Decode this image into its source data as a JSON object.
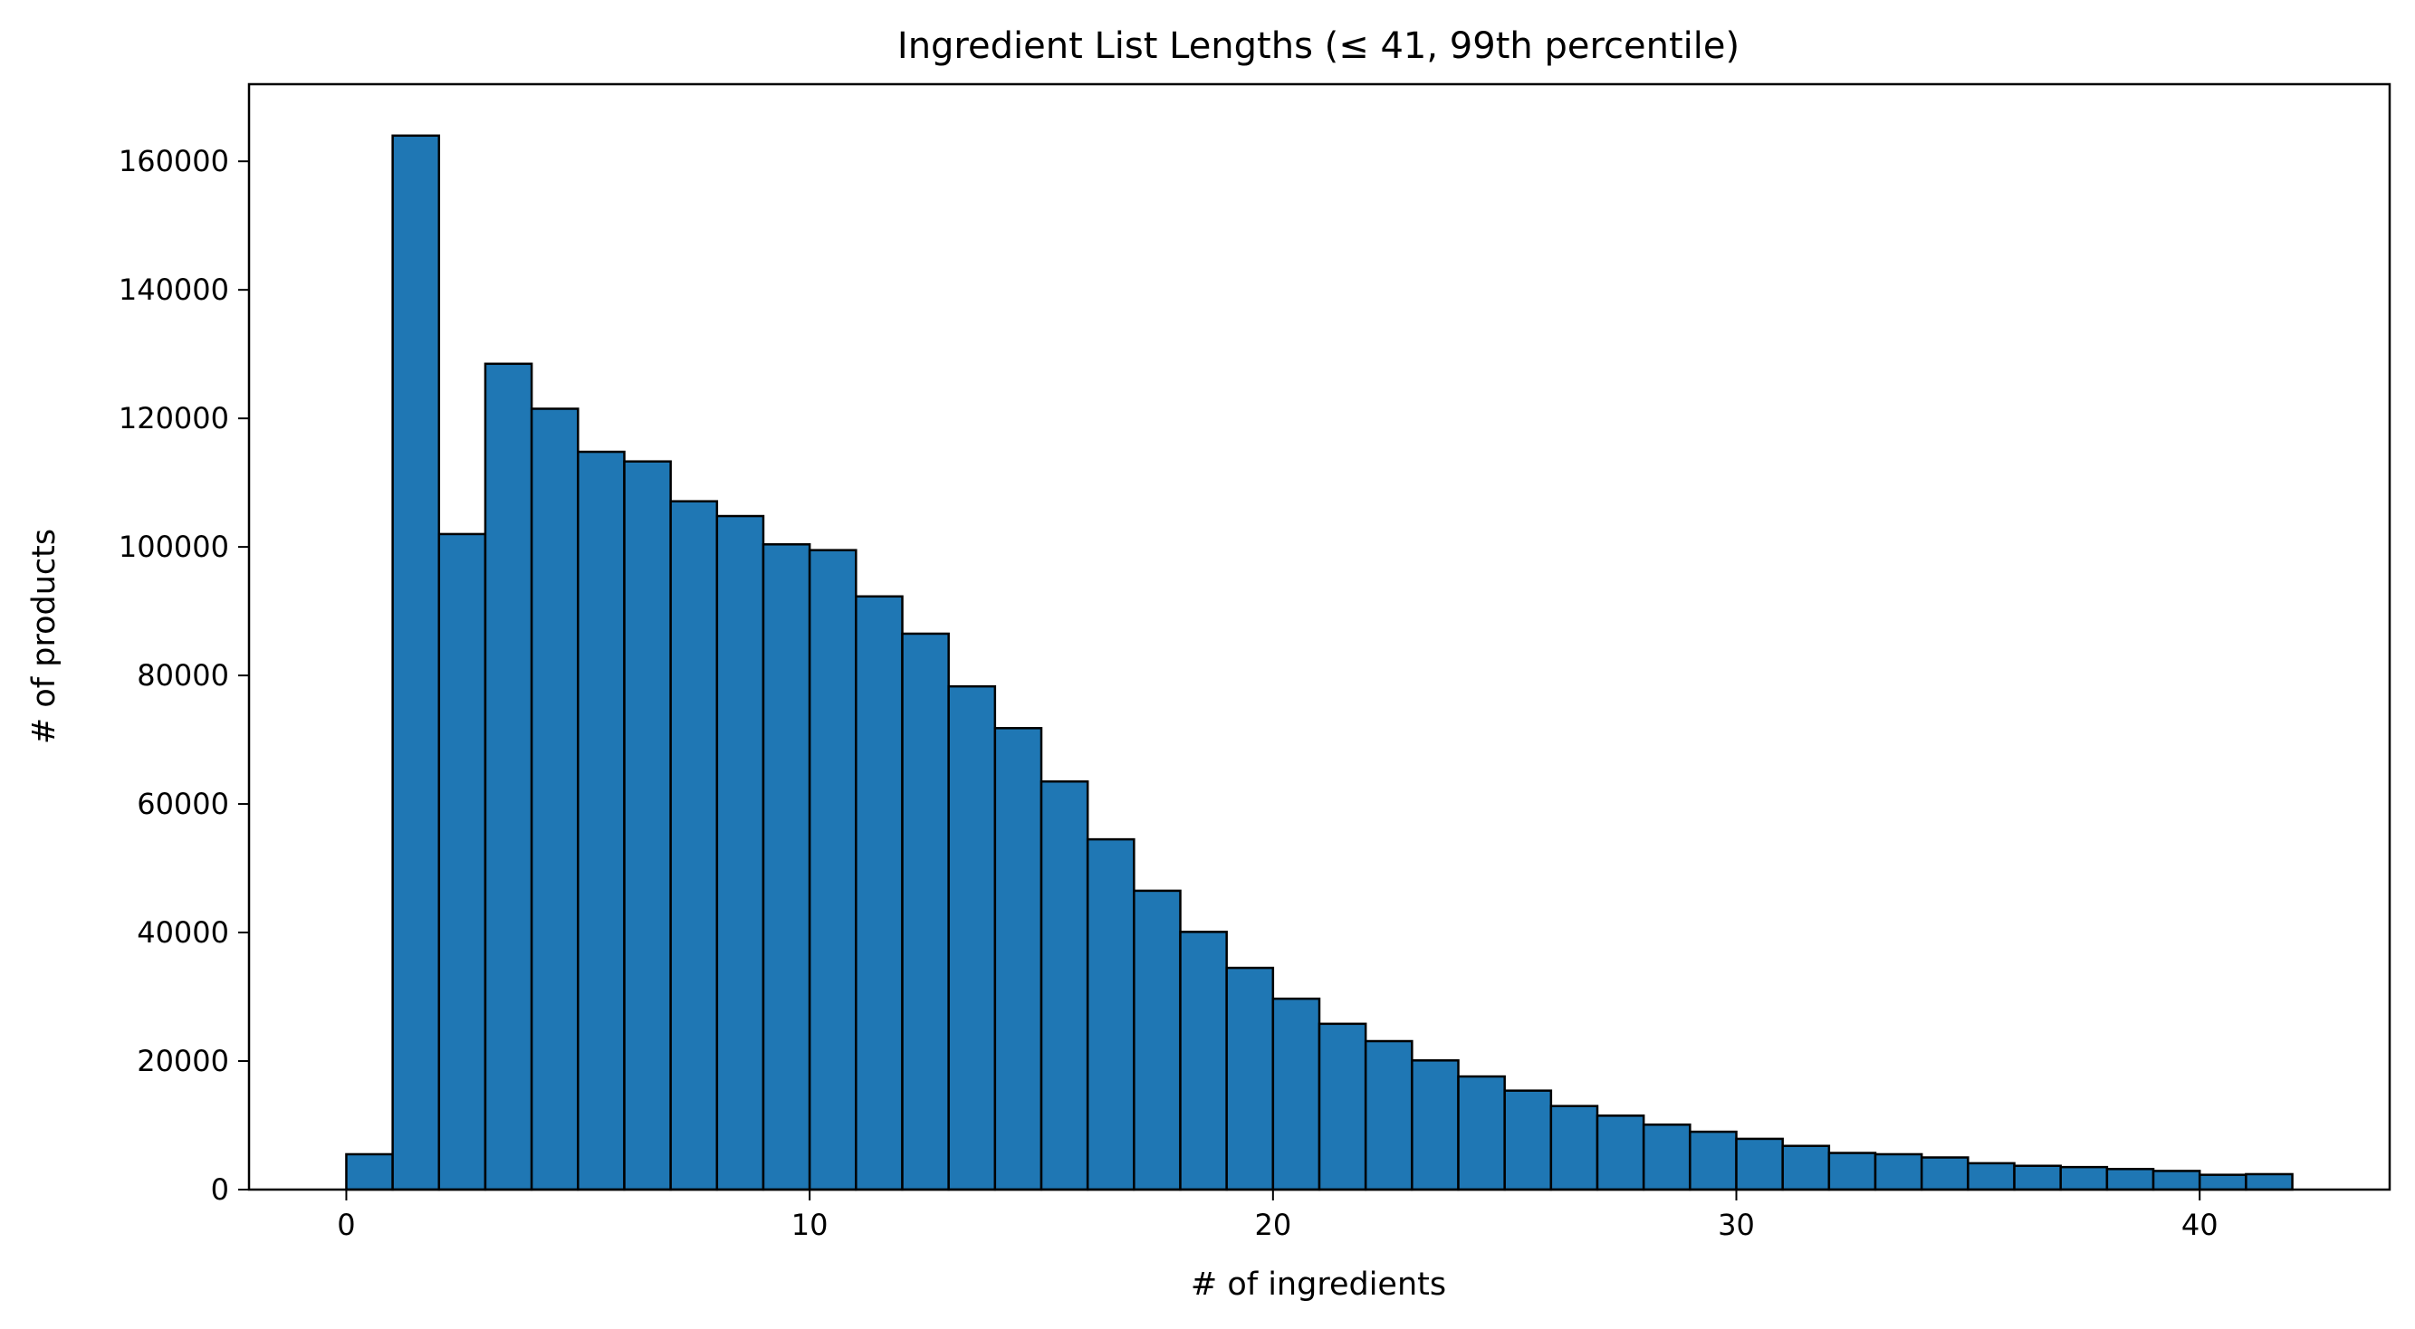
{
  "chart_data": {
    "type": "bar",
    "title": "Ingredient List Lengths (≤ 41, 99th percentile)",
    "xlabel": "# of ingredients",
    "ylabel": "# of products",
    "bin_width": 1,
    "bin_starts": [
      0,
      1,
      2,
      3,
      4,
      5,
      6,
      7,
      8,
      9,
      10,
      11,
      12,
      13,
      14,
      15,
      16,
      17,
      18,
      19,
      20,
      21,
      22,
      23,
      24,
      25,
      26,
      27,
      28,
      29,
      30,
      31,
      32,
      33,
      34,
      35,
      36,
      37,
      38,
      39,
      40,
      41
    ],
    "values": [
      5500,
      164000,
      102000,
      128500,
      121500,
      114800,
      113300,
      107100,
      104800,
      100400,
      99500,
      92300,
      86500,
      78300,
      71800,
      63500,
      54500,
      46500,
      40100,
      34500,
      29700,
      25800,
      23100,
      20100,
      17600,
      15400,
      13000,
      11500,
      10100,
      9000,
      7900,
      6800,
      5700,
      5500,
      5000,
      4100,
      3700,
      3500,
      3200,
      2900,
      2300,
      2400
    ],
    "xlim": [
      -2.1,
      44.1
    ],
    "ylim": [
      0,
      172000
    ],
    "xticks": [
      0,
      10,
      20,
      30,
      40
    ],
    "xtick_labels": [
      "0",
      "10",
      "20",
      "30",
      "40"
    ],
    "yticks": [
      0,
      20000,
      40000,
      60000,
      80000,
      100000,
      120000,
      140000,
      160000
    ],
    "ytick_labels": [
      "0",
      "20000",
      "40000",
      "60000",
      "80000",
      "100000",
      "120000",
      "140000",
      "160000"
    ],
    "grid": false,
    "legend": "none",
    "bar_color": "#1f77b4",
    "edge_color": "#000000"
  }
}
